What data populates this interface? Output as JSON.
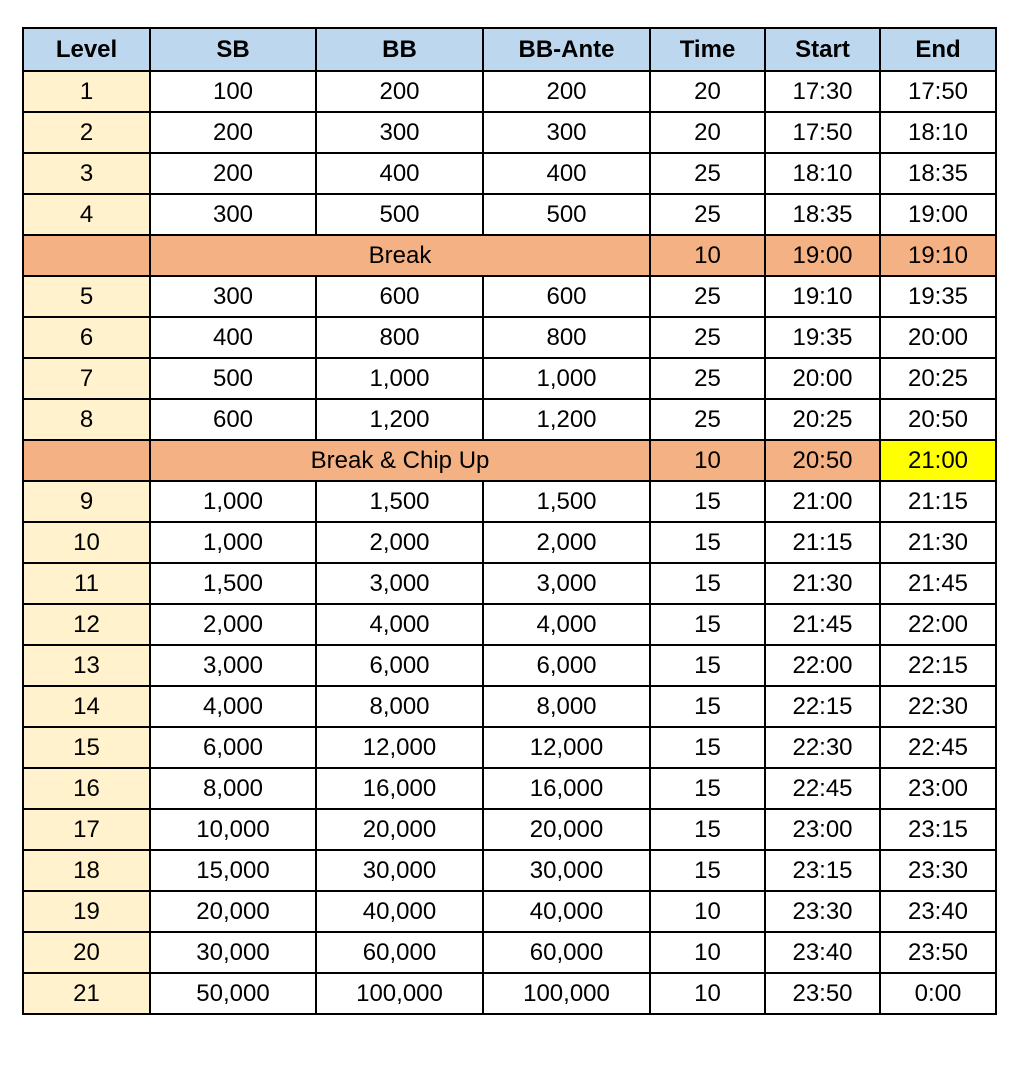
{
  "headers": [
    "Level",
    "SB",
    "BB",
    "BB-Ante",
    "Time",
    "Start",
    "End"
  ],
  "colors": {
    "header": "#bdd7ee",
    "level": "#fff2cc",
    "break": "#f4b183",
    "highlight": "#ffff00"
  },
  "rows": [
    {
      "level": "1",
      "sb": "100",
      "bb": "200",
      "ante": "200",
      "time": "20",
      "start": "17:30",
      "end": "17:50"
    },
    {
      "level": "2",
      "sb": "200",
      "bb": "300",
      "ante": "300",
      "time": "20",
      "start": "17:50",
      "end": "18:10"
    },
    {
      "level": "3",
      "sb": "200",
      "bb": "400",
      "ante": "400",
      "time": "25",
      "start": "18:10",
      "end": "18:35"
    },
    {
      "level": "4",
      "sb": "300",
      "bb": "500",
      "ante": "500",
      "time": "25",
      "start": "18:35",
      "end": "19:00"
    },
    {
      "break": true,
      "label": "Break",
      "time": "10",
      "start": "19:00",
      "end": "19:10"
    },
    {
      "level": "5",
      "sb": "300",
      "bb": "600",
      "ante": "600",
      "time": "25",
      "start": "19:10",
      "end": "19:35"
    },
    {
      "level": "6",
      "sb": "400",
      "bb": "800",
      "ante": "800",
      "time": "25",
      "start": "19:35",
      "end": "20:00"
    },
    {
      "level": "7",
      "sb": "500",
      "bb": "1,000",
      "ante": "1,000",
      "time": "25",
      "start": "20:00",
      "end": "20:25"
    },
    {
      "level": "8",
      "sb": "600",
      "bb": "1,200",
      "ante": "1,200",
      "time": "25",
      "start": "20:25",
      "end": "20:50"
    },
    {
      "break": true,
      "label": "Break & Chip Up",
      "time": "10",
      "start": "20:50",
      "end": "21:00",
      "end_highlight": true
    },
    {
      "level": "9",
      "sb": "1,000",
      "bb": "1,500",
      "ante": "1,500",
      "time": "15",
      "start": "21:00",
      "end": "21:15"
    },
    {
      "level": "10",
      "sb": "1,000",
      "bb": "2,000",
      "ante": "2,000",
      "time": "15",
      "start": "21:15",
      "end": "21:30"
    },
    {
      "level": "11",
      "sb": "1,500",
      "bb": "3,000",
      "ante": "3,000",
      "time": "15",
      "start": "21:30",
      "end": "21:45"
    },
    {
      "level": "12",
      "sb": "2,000",
      "bb": "4,000",
      "ante": "4,000",
      "time": "15",
      "start": "21:45",
      "end": "22:00"
    },
    {
      "level": "13",
      "sb": "3,000",
      "bb": "6,000",
      "ante": "6,000",
      "time": "15",
      "start": "22:00",
      "end": "22:15"
    },
    {
      "level": "14",
      "sb": "4,000",
      "bb": "8,000",
      "ante": "8,000",
      "time": "15",
      "start": "22:15",
      "end": "22:30"
    },
    {
      "level": "15",
      "sb": "6,000",
      "bb": "12,000",
      "ante": "12,000",
      "time": "15",
      "start": "22:30",
      "end": "22:45"
    },
    {
      "level": "16",
      "sb": "8,000",
      "bb": "16,000",
      "ante": "16,000",
      "time": "15",
      "start": "22:45",
      "end": "23:00"
    },
    {
      "level": "17",
      "sb": "10,000",
      "bb": "20,000",
      "ante": "20,000",
      "time": "15",
      "start": "23:00",
      "end": "23:15"
    },
    {
      "level": "18",
      "sb": "15,000",
      "bb": "30,000",
      "ante": "30,000",
      "time": "15",
      "start": "23:15",
      "end": "23:30"
    },
    {
      "level": "19",
      "sb": "20,000",
      "bb": "40,000",
      "ante": "40,000",
      "time": "10",
      "start": "23:30",
      "end": "23:40"
    },
    {
      "level": "20",
      "sb": "30,000",
      "bb": "60,000",
      "ante": "60,000",
      "time": "10",
      "start": "23:40",
      "end": "23:50"
    },
    {
      "level": "21",
      "sb": "50,000",
      "bb": "100,000",
      "ante": "100,000",
      "time": "10",
      "start": "23:50",
      "end": "0:00"
    }
  ]
}
